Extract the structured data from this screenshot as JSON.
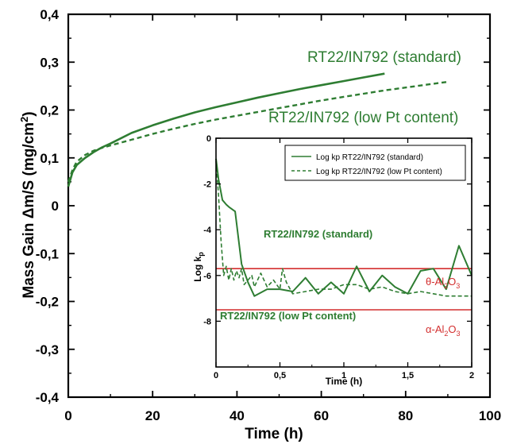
{
  "colors": {
    "series": "#2e7d32",
    "reference": "#d32f2f",
    "axis": "#000000"
  },
  "chart_data": [
    {
      "type": "line",
      "xlabel": "Time (h)",
      "ylabel": "Mass Gain Δm/S (mg/cm2)",
      "xlim": [
        0,
        100
      ],
      "ylim": [
        -0.4,
        0.4
      ],
      "x_ticks": [
        "0",
        "20",
        "40",
        "60",
        "80",
        "100"
      ],
      "y_ticks": [
        "-0,4",
        "-0,3",
        "-0,2",
        "-0,1",
        "0",
        "0,1",
        "0,2",
        "0,3",
        "0,4"
      ],
      "grid": false,
      "series": [
        {
          "name": "RT22/IN792 (standard)",
          "style": "solid",
          "x": [
            0,
            1,
            2,
            4,
            6,
            8,
            10,
            15,
            20,
            25,
            30,
            35,
            40,
            45,
            50,
            55,
            60,
            65,
            70,
            75
          ],
          "y": [
            0.04,
            0.07,
            0.085,
            0.1,
            0.112,
            0.122,
            0.13,
            0.152,
            0.168,
            0.182,
            0.195,
            0.206,
            0.216,
            0.226,
            0.235,
            0.244,
            0.252,
            0.26,
            0.268,
            0.276
          ]
        },
        {
          "name": "RT22/IN792 (low Pt content)",
          "style": "dashed",
          "x": [
            0,
            1,
            2,
            4,
            6,
            8,
            10,
            15,
            20,
            25,
            30,
            35,
            40,
            45,
            50,
            55,
            60,
            65,
            70,
            75,
            80,
            85,
            90
          ],
          "y": [
            0.05,
            0.075,
            0.092,
            0.106,
            0.115,
            0.121,
            0.126,
            0.138,
            0.15,
            0.161,
            0.171,
            0.18,
            0.188,
            0.196,
            0.204,
            0.212,
            0.22,
            0.227,
            0.234,
            0.241,
            0.247,
            0.253,
            0.259
          ]
        }
      ],
      "annotations": [
        "RT22/IN792 (standard)",
        "RT22/IN792 (low Pt content)"
      ]
    },
    {
      "type": "line",
      "xlabel": "Time (h)",
      "ylabel": "Log kp",
      "xlim": [
        0,
        2
      ],
      "ylim": [
        -10,
        0
      ],
      "x_ticks": [
        "0",
        "0,5",
        "1",
        "1,5",
        "2"
      ],
      "y_ticks": [
        "-8",
        "-6",
        "-4",
        "-2",
        "0"
      ],
      "grid": false,
      "legend_position": "top-right",
      "series": [
        {
          "name": "Log kp RT22/IN792 (standard)",
          "style": "solid",
          "x": [
            0,
            0.02,
            0.05,
            0.08,
            0.1,
            0.15,
            0.2,
            0.25,
            0.3,
            0.4,
            0.5,
            0.6,
            0.7,
            0.8,
            0.9,
            1.0,
            1.1,
            1.2,
            1.3,
            1.4,
            1.5,
            1.6,
            1.7,
            1.8,
            1.9,
            2.0
          ],
          "y": [
            -0.9,
            -1.8,
            -2.7,
            -2.9,
            -3.0,
            -3.2,
            -5.5,
            -6.3,
            -6.9,
            -6.6,
            -6.6,
            -6.7,
            -6.1,
            -6.8,
            -6.3,
            -6.8,
            -5.6,
            -6.7,
            -6.0,
            -6.5,
            -6.8,
            -5.8,
            -5.7,
            -6.6,
            -4.7,
            -6.0
          ]
        },
        {
          "name": "Log kp RT22/IN792 (low Pt content)",
          "style": "dashed",
          "x": [
            0,
            0.02,
            0.04,
            0.06,
            0.08,
            0.1,
            0.12,
            0.14,
            0.16,
            0.18,
            0.2,
            0.22,
            0.25,
            0.28,
            0.3,
            0.35,
            0.4,
            0.45,
            0.5,
            0.52,
            0.55,
            0.6,
            0.7,
            0.8,
            0.9,
            1.0,
            1.1,
            1.2,
            1.3,
            1.4,
            1.5,
            1.6,
            1.7,
            1.8,
            1.9,
            2.0
          ],
          "y": [
            -1.0,
            -2.5,
            -4.5,
            -6.0,
            -5.6,
            -6.2,
            -5.7,
            -6.2,
            -5.8,
            -6.1,
            -5.7,
            -6.4,
            -6.2,
            -6.0,
            -6.5,
            -5.9,
            -6.5,
            -6.2,
            -6.6,
            -5.7,
            -6.3,
            -6.8,
            -6.7,
            -6.6,
            -6.6,
            -6.4,
            -6.4,
            -6.6,
            -6.5,
            -6.7,
            -6.8,
            -6.7,
            -6.8,
            -6.9,
            -6.9,
            -6.9
          ]
        },
        {
          "name": "θ-Al2O3",
          "style": "reference",
          "x": [
            0,
            2
          ],
          "y": [
            -5.7,
            -5.7
          ]
        },
        {
          "name": "α-Al2O3",
          "style": "reference",
          "x": [
            0,
            2
          ],
          "y": [
            -7.5,
            -7.5
          ]
        }
      ],
      "annotations": [
        "RT22/IN792 (standard)",
        "RT22/IN792 (low Pt content)",
        "θ-Al2O3",
        "α-Al2O3"
      ]
    }
  ]
}
